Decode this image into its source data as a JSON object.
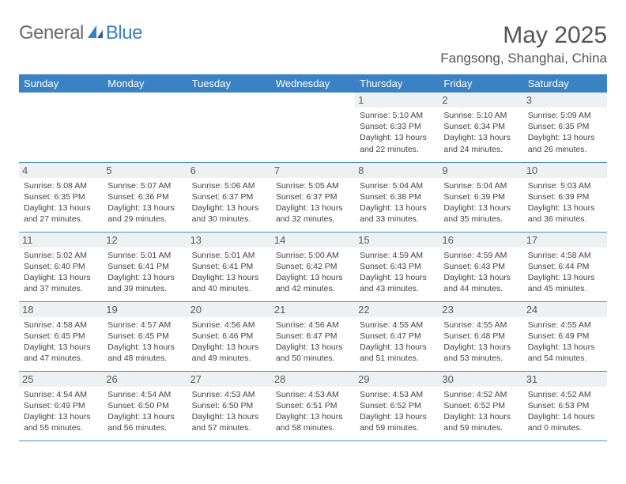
{
  "brand": {
    "part1": "General",
    "part2": "Blue"
  },
  "title": "May 2025",
  "location": "Fangsong, Shanghai, China",
  "colors": {
    "header_bg": "#3b82c4",
    "header_text": "#ffffff",
    "daynum_bg": "#eef1f3",
    "rule": "#4a8fc9",
    "logo_gray": "#6a6a6a",
    "logo_blue": "#3b7fc4"
  },
  "weekdays": [
    "Sunday",
    "Monday",
    "Tuesday",
    "Wednesday",
    "Thursday",
    "Friday",
    "Saturday"
  ],
  "weeks": [
    [
      null,
      null,
      null,
      null,
      {
        "n": "1",
        "sr": "5:10 AM",
        "ss": "6:33 PM",
        "dl": "13 hours and 22 minutes."
      },
      {
        "n": "2",
        "sr": "5:10 AM",
        "ss": "6:34 PM",
        "dl": "13 hours and 24 minutes."
      },
      {
        "n": "3",
        "sr": "5:09 AM",
        "ss": "6:35 PM",
        "dl": "13 hours and 26 minutes."
      }
    ],
    [
      {
        "n": "4",
        "sr": "5:08 AM",
        "ss": "6:35 PM",
        "dl": "13 hours and 27 minutes."
      },
      {
        "n": "5",
        "sr": "5:07 AM",
        "ss": "6:36 PM",
        "dl": "13 hours and 29 minutes."
      },
      {
        "n": "6",
        "sr": "5:06 AM",
        "ss": "6:37 PM",
        "dl": "13 hours and 30 minutes."
      },
      {
        "n": "7",
        "sr": "5:05 AM",
        "ss": "6:37 PM",
        "dl": "13 hours and 32 minutes."
      },
      {
        "n": "8",
        "sr": "5:04 AM",
        "ss": "6:38 PM",
        "dl": "13 hours and 33 minutes."
      },
      {
        "n": "9",
        "sr": "5:04 AM",
        "ss": "6:39 PM",
        "dl": "13 hours and 35 minutes."
      },
      {
        "n": "10",
        "sr": "5:03 AM",
        "ss": "6:39 PM",
        "dl": "13 hours and 36 minutes."
      }
    ],
    [
      {
        "n": "11",
        "sr": "5:02 AM",
        "ss": "6:40 PM",
        "dl": "13 hours and 37 minutes."
      },
      {
        "n": "12",
        "sr": "5:01 AM",
        "ss": "6:41 PM",
        "dl": "13 hours and 39 minutes."
      },
      {
        "n": "13",
        "sr": "5:01 AM",
        "ss": "6:41 PM",
        "dl": "13 hours and 40 minutes."
      },
      {
        "n": "14",
        "sr": "5:00 AM",
        "ss": "6:42 PM",
        "dl": "13 hours and 42 minutes."
      },
      {
        "n": "15",
        "sr": "4:59 AM",
        "ss": "6:43 PM",
        "dl": "13 hours and 43 minutes."
      },
      {
        "n": "16",
        "sr": "4:59 AM",
        "ss": "6:43 PM",
        "dl": "13 hours and 44 minutes."
      },
      {
        "n": "17",
        "sr": "4:58 AM",
        "ss": "6:44 PM",
        "dl": "13 hours and 45 minutes."
      }
    ],
    [
      {
        "n": "18",
        "sr": "4:58 AM",
        "ss": "6:45 PM",
        "dl": "13 hours and 47 minutes."
      },
      {
        "n": "19",
        "sr": "4:57 AM",
        "ss": "6:45 PM",
        "dl": "13 hours and 48 minutes."
      },
      {
        "n": "20",
        "sr": "4:56 AM",
        "ss": "6:46 PM",
        "dl": "13 hours and 49 minutes."
      },
      {
        "n": "21",
        "sr": "4:56 AM",
        "ss": "6:47 PM",
        "dl": "13 hours and 50 minutes."
      },
      {
        "n": "22",
        "sr": "4:55 AM",
        "ss": "6:47 PM",
        "dl": "13 hours and 51 minutes."
      },
      {
        "n": "23",
        "sr": "4:55 AM",
        "ss": "6:48 PM",
        "dl": "13 hours and 53 minutes."
      },
      {
        "n": "24",
        "sr": "4:55 AM",
        "ss": "6:49 PM",
        "dl": "13 hours and 54 minutes."
      }
    ],
    [
      {
        "n": "25",
        "sr": "4:54 AM",
        "ss": "6:49 PM",
        "dl": "13 hours and 55 minutes."
      },
      {
        "n": "26",
        "sr": "4:54 AM",
        "ss": "6:50 PM",
        "dl": "13 hours and 56 minutes."
      },
      {
        "n": "27",
        "sr": "4:53 AM",
        "ss": "6:50 PM",
        "dl": "13 hours and 57 minutes."
      },
      {
        "n": "28",
        "sr": "4:53 AM",
        "ss": "6:51 PM",
        "dl": "13 hours and 58 minutes."
      },
      {
        "n": "29",
        "sr": "4:53 AM",
        "ss": "6:52 PM",
        "dl": "13 hours and 59 minutes."
      },
      {
        "n": "30",
        "sr": "4:52 AM",
        "ss": "6:52 PM",
        "dl": "13 hours and 59 minutes."
      },
      {
        "n": "31",
        "sr": "4:52 AM",
        "ss": "6:53 PM",
        "dl": "14 hours and 0 minutes."
      }
    ]
  ],
  "labels": {
    "sunrise": "Sunrise:",
    "sunset": "Sunset:",
    "daylight": "Daylight:"
  }
}
